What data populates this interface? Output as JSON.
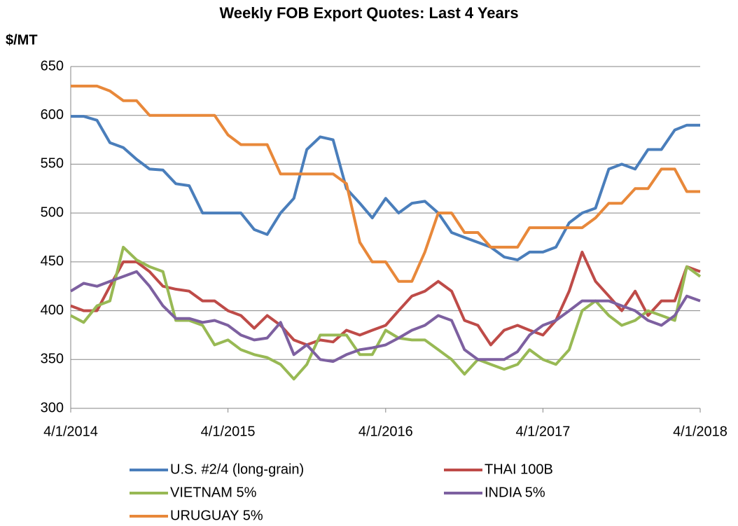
{
  "chart_data": {
    "type": "line",
    "title": "Weekly FOB Export Quotes:  Last 4 Years",
    "y_label": "$/MT",
    "x": [
      "4/1/2014",
      "5/1/2014",
      "6/1/2014",
      "7/1/2014",
      "8/1/2014",
      "9/1/2014",
      "10/1/2014",
      "11/1/2014",
      "12/1/2014",
      "1/1/2015",
      "2/1/2015",
      "3/1/2015",
      "4/1/2015",
      "5/1/2015",
      "6/1/2015",
      "7/1/2015",
      "8/1/2015",
      "9/1/2015",
      "10/1/2015",
      "11/1/2015",
      "12/1/2015",
      "1/1/2016",
      "2/1/2016",
      "3/1/2016",
      "4/1/2016",
      "5/1/2016",
      "6/1/2016",
      "7/1/2016",
      "8/1/2016",
      "9/1/2016",
      "10/1/2016",
      "11/1/2016",
      "12/1/2016",
      "1/1/2017",
      "2/1/2017",
      "3/1/2017",
      "4/1/2017",
      "5/1/2017",
      "6/1/2017",
      "7/1/2017",
      "8/1/2017",
      "9/1/2017",
      "10/1/2017",
      "11/1/2017",
      "12/1/2017",
      "1/1/2018",
      "2/1/2018",
      "3/1/2018",
      "4/1/2018"
    ],
    "series": [
      {
        "name": "U.S. #2/4 (long-grain)",
        "color": "#4a7ebb",
        "values": [
          599,
          599,
          595,
          572,
          567,
          555,
          545,
          544,
          530,
          528,
          500,
          500,
          500,
          500,
          483,
          478,
          500,
          515,
          565,
          578,
          575,
          525,
          510,
          495,
          515,
          500,
          510,
          512,
          500,
          480,
          475,
          470,
          465,
          455,
          452,
          460,
          460,
          465,
          490,
          500,
          505,
          545,
          550,
          545,
          565,
          565,
          585,
          590,
          590
        ]
      },
      {
        "name": "THAI 100B",
        "color": "#be4b48",
        "values": [
          405,
          400,
          400,
          425,
          450,
          450,
          440,
          425,
          422,
          420,
          410,
          410,
          400,
          395,
          382,
          395,
          385,
          370,
          365,
          370,
          368,
          380,
          375,
          380,
          385,
          400,
          415,
          420,
          430,
          420,
          390,
          385,
          365,
          380,
          385,
          380,
          375,
          390,
          420,
          460,
          430,
          415,
          400,
          420,
          395,
          410,
          410,
          445,
          440
        ]
      },
      {
        "name": "VIETNAM 5%",
        "color": "#98b954",
        "values": [
          395,
          388,
          405,
          410,
          465,
          452,
          445,
          440,
          390,
          390,
          385,
          365,
          370,
          360,
          355,
          352,
          345,
          330,
          345,
          375,
          375,
          375,
          355,
          355,
          380,
          372,
          370,
          370,
          360,
          350,
          335,
          350,
          345,
          340,
          345,
          360,
          350,
          345,
          360,
          400,
          410,
          395,
          385,
          390,
          400,
          395,
          390,
          445,
          435
        ]
      },
      {
        "name": "INDIA 5%",
        "color": "#7d60a0",
        "values": [
          420,
          428,
          425,
          430,
          435,
          440,
          425,
          405,
          392,
          392,
          388,
          390,
          385,
          375,
          370,
          372,
          388,
          355,
          365,
          350,
          348,
          355,
          360,
          362,
          365,
          372,
          380,
          385,
          395,
          390,
          360,
          350,
          350,
          350,
          358,
          375,
          385,
          390,
          400,
          410,
          410,
          410,
          405,
          400,
          390,
          385,
          395,
          415,
          410
        ]
      },
      {
        "name": "URUGUAY 5%",
        "color": "#e8883a",
        "values": [
          630,
          630,
          630,
          625,
          615,
          615,
          600,
          600,
          600,
          600,
          600,
          600,
          580,
          570,
          570,
          570,
          540,
          540,
          540,
          540,
          540,
          530,
          470,
          450,
          450,
          430,
          430,
          460,
          500,
          500,
          480,
          480,
          465,
          465,
          465,
          485,
          485,
          485,
          485,
          485,
          495,
          510,
          510,
          525,
          525,
          545,
          545,
          522,
          522
        ]
      }
    ],
    "xlim": [
      "4/1/2014",
      "4/1/2018"
    ],
    "xticks": [
      "4/1/2014",
      "4/1/2015",
      "4/1/2016",
      "4/1/2017",
      "4/1/2018"
    ],
    "ylim": [
      300,
      650
    ],
    "yticks": [
      300,
      350,
      400,
      450,
      500,
      550,
      600,
      650
    ],
    "grid": true
  }
}
